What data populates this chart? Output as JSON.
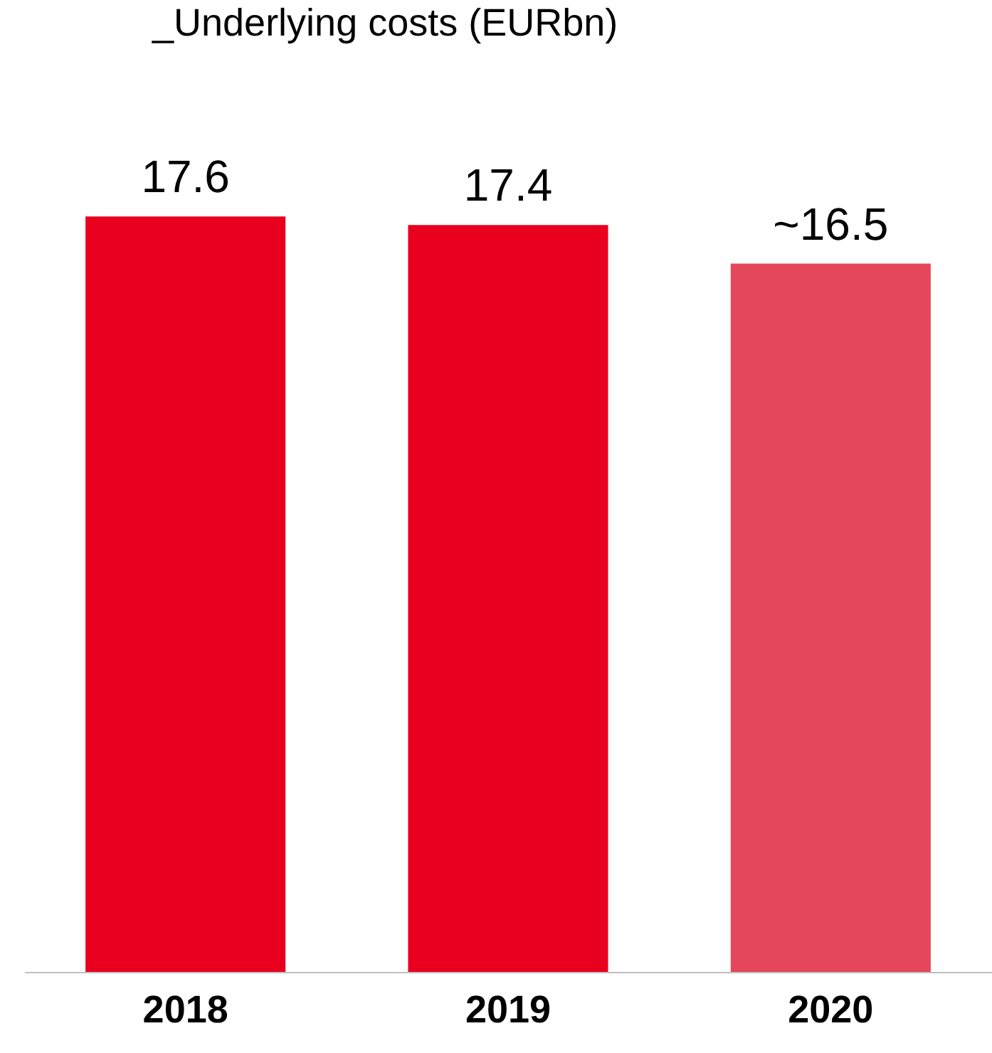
{
  "chart_data": {
    "type": "bar",
    "title": "_Underlying costs (EURbn)",
    "categories": [
      "2018",
      "2019",
      "2020"
    ],
    "values": [
      17.6,
      17.4,
      16.5
    ],
    "colors": [
      "#e8001e",
      "#e8001e",
      "#e4475a"
    ],
    "value_labels": [
      "17.6",
      "17.4",
      "~16.5"
    ]
  }
}
